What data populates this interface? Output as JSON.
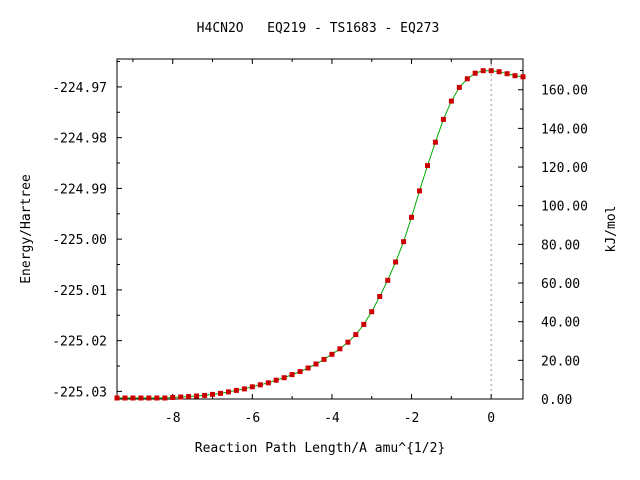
{
  "chart_data": {
    "type": "line",
    "title": "H4CN2O   EQ219 - TS1683 - EQ273",
    "xlabel": "Reaction Path Length/A amu^{1/2}",
    "ylabel": "Energy/Hartree",
    "y2label": "kJ/mol",
    "xlim": [
      -9.4,
      0.8
    ],
    "ylim": [
      -225.0315,
      -224.9645
    ],
    "y2lim": [
      0.0,
      175.9
    ],
    "x_ticks": [
      -8,
      -6,
      -4,
      -2,
      0
    ],
    "x_tick_labels": [
      "-8",
      "-6",
      "-4",
      "-2",
      "0"
    ],
    "y_ticks": [
      -224.97,
      -224.98,
      -224.99,
      -225.0,
      -225.01,
      -225.02,
      -225.03
    ],
    "y_tick_labels": [
      "-224.97",
      "-224.98",
      "-224.99",
      "-225.00",
      "-225.01",
      "-225.02",
      "-225.03"
    ],
    "y2_ticks": [
      160,
      140,
      120,
      100,
      80,
      60,
      40,
      20,
      0
    ],
    "y2_tick_labels": [
      "160.00",
      "140.00",
      "120.00",
      "100.00",
      "80.00",
      "60.00",
      "40.00",
      "20.00",
      "0.00"
    ],
    "ts_marker_x": 0,
    "grid": false,
    "line_color": "#00aa00",
    "marker_color": "#cc0000",
    "series": [
      {
        "x": [
          -9.4,
          -9.2,
          -9.0,
          -8.8,
          -8.6,
          -8.4,
          -8.2,
          -8.0,
          -7.8,
          -7.6,
          -7.4,
          -7.2,
          -7.0,
          -6.8,
          -6.6,
          -6.4,
          -6.2,
          -6.0,
          -5.8,
          -5.6,
          -5.4,
          -5.2,
          -5.0,
          -4.8,
          -4.6,
          -4.4,
          -4.2,
          -4.0,
          -3.8,
          -3.6,
          -3.4,
          -3.2,
          -3.0,
          -2.8,
          -2.6,
          -2.4,
          -2.2,
          -2.0,
          -1.8,
          -1.6,
          -1.4,
          -1.2,
          -1.0,
          -0.8,
          -0.6,
          -0.4,
          -0.2,
          0.0,
          0.2,
          0.4,
          0.6,
          0.8
        ],
        "y": [
          -225.0313,
          -225.0313,
          -225.0313,
          -225.0313,
          -225.0313,
          -225.0313,
          -225.0313,
          -225.0312,
          -225.0311,
          -225.031,
          -225.0309,
          -225.0308,
          -225.0306,
          -225.0304,
          -225.0301,
          -225.0298,
          -225.0295,
          -225.0291,
          -225.0287,
          -225.0283,
          -225.0278,
          -225.0273,
          -225.0267,
          -225.0261,
          -225.0254,
          -225.0246,
          -225.0237,
          -225.0227,
          -225.0216,
          -225.0203,
          -225.0188,
          -225.0168,
          -225.0143,
          -225.0113,
          -225.0081,
          -225.0045,
          -225.0005,
          -224.9957,
          -224.9905,
          -224.9855,
          -224.9809,
          -224.9764,
          -224.9728,
          -224.9701,
          -224.9684,
          -224.9673,
          -224.9668,
          -224.9668,
          -224.967,
          -224.9674,
          -224.9678,
          -224.968
        ]
      }
    ]
  }
}
